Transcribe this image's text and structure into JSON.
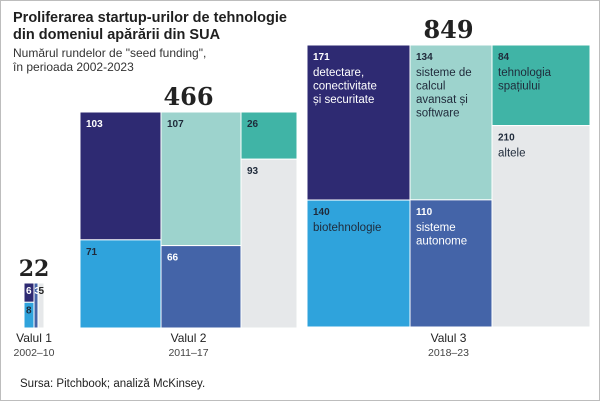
{
  "title": "Proliferarea startup-urilor de tehnologie din domeniul apărării din SUA",
  "subtitle_lines": [
    "Numărul rundelor de \"seed funding\",",
    "în perioada 2002-2023"
  ],
  "source": "Sursa: Pitchbook; analiză McKinsey.",
  "colors": {
    "detectare": "#2e2a72",
    "calcul": "#9dd3cd",
    "spatiu": "#40b4a6",
    "altele": "#e6e8ea",
    "biotehnologie": "#2fa3dc",
    "autonome": "#4464a8"
  },
  "chart_data": {
    "type": "treemap",
    "title": "Proliferarea startup-urilor de tehnologie din domeniul apărării din SUA",
    "subtitle": "Numărul rundelor de \"seed funding\", în perioada 2002-2023",
    "categories": [
      {
        "key": "detectare",
        "label": [
          "detectare,",
          "conectivitate",
          "și securitate"
        ]
      },
      {
        "key": "calcul",
        "label": [
          "sisteme de",
          "calcul",
          "avansat și",
          "software"
        ]
      },
      {
        "key": "spatiu",
        "label": [
          "tehnologia",
          "spațiului"
        ]
      },
      {
        "key": "altele",
        "label": [
          "altele"
        ]
      },
      {
        "key": "biotehnologie",
        "label": [
          "biotehnologie"
        ]
      },
      {
        "key": "autonome",
        "label": [
          "sisteme",
          "autonome"
        ]
      }
    ],
    "waves": [
      {
        "name": "Valul 1",
        "years": "2002–10",
        "total": "22",
        "values": {
          "detectare": 6,
          "biotehnologie": 8,
          "autonome": 3,
          "altele": 5,
          "calcul": 0,
          "spatiu": 0
        }
      },
      {
        "name": "Valul 2",
        "years": "2011–17",
        "total": "466",
        "values": {
          "detectare": 103,
          "biotehnologie": 71,
          "calcul": 107,
          "autonome": 66,
          "spatiu": 26,
          "altele": 93
        }
      },
      {
        "name": "Valul 3",
        "years": "2018–23",
        "total": "849",
        "values": {
          "detectare": 171,
          "biotehnologie": 140,
          "calcul": 134,
          "autonome": 110,
          "spatiu": 84,
          "altele": 210
        }
      }
    ]
  }
}
